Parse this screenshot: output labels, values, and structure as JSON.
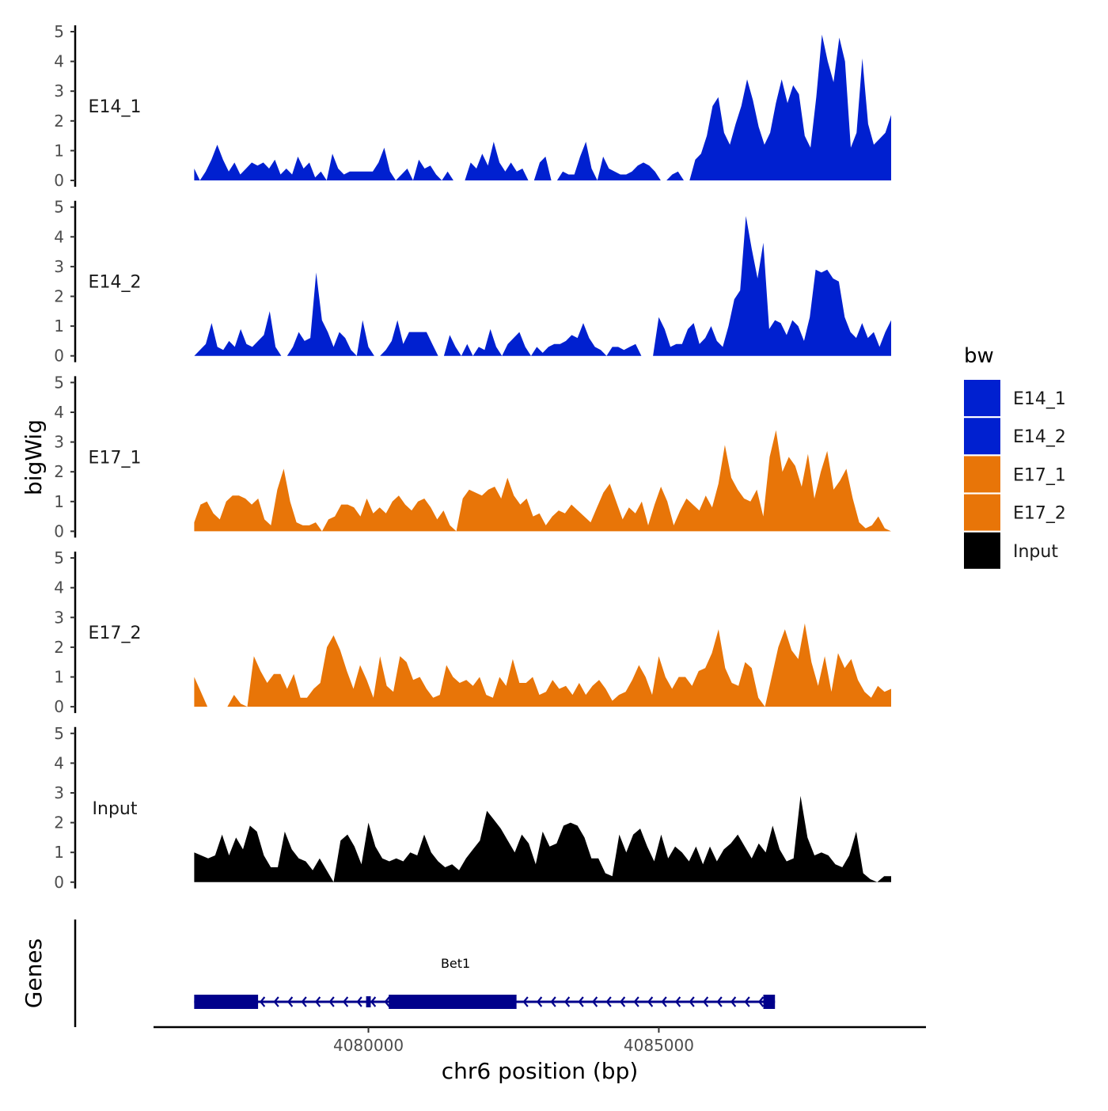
{
  "chart_data": {
    "type": "area",
    "title": "",
    "ylabel": "bigWig",
    "gene_panel_label": "Genes",
    "xlabel": "chr6 position (bp)",
    "xlim": [
      4076300,
      4089600
    ],
    "data_range": [
      4077000,
      4089000
    ],
    "x_ticks": [
      {
        "value": 4080000,
        "label": "4080000"
      },
      {
        "value": 4085000,
        "label": "4085000"
      }
    ],
    "ylim": [
      0,
      5
    ],
    "y_ticks": [
      "0",
      "1",
      "2",
      "3",
      "4",
      "5"
    ],
    "legend": {
      "title": "bw",
      "position": "right",
      "items": [
        {
          "label": "E14_1",
          "color": "#0020D0"
        },
        {
          "label": "E14_2",
          "color": "#0020D0"
        },
        {
          "label": "E17_1",
          "color": "#E87508"
        },
        {
          "label": "E17_2",
          "color": "#E87508"
        },
        {
          "label": "Input",
          "color": "#000000"
        }
      ]
    },
    "series": [
      {
        "name": "E14_1",
        "label": "E14_1",
        "color": "#0020D0",
        "values": [
          0.4,
          0.0,
          0.3,
          0.7,
          1.2,
          0.7,
          0.3,
          0.6,
          0.2,
          0.4,
          0.6,
          0.5,
          0.6,
          0.4,
          0.7,
          0.2,
          0.4,
          0.2,
          0.8,
          0.4,
          0.6,
          0.1,
          0.3,
          0.0,
          0.9,
          0.4,
          0.2,
          0.3,
          0.3,
          0.3,
          0.3,
          0.3,
          0.6,
          1.1,
          0.3,
          0.0,
          0.2,
          0.4,
          0.0,
          0.7,
          0.4,
          0.5,
          0.2,
          0.0,
          0.3,
          0.0,
          0.0,
          0.0,
          0.6,
          0.4,
          0.9,
          0.5,
          1.3,
          0.6,
          0.3,
          0.6,
          0.3,
          0.4,
          0.0,
          0.0,
          0.6,
          0.8,
          0.0,
          0.0,
          0.3,
          0.2,
          0.2,
          0.8,
          1.3,
          0.4,
          0.0,
          0.8,
          0.4,
          0.3,
          0.2,
          0.2,
          0.3,
          0.5,
          0.6,
          0.5,
          0.3,
          0.0,
          0.0,
          0.2,
          0.3,
          0.0,
          0.0,
          0.7,
          0.9,
          1.5,
          2.5,
          2.8,
          1.6,
          1.2,
          1.9,
          2.5,
          3.4,
          2.7,
          1.8,
          1.2,
          1.6,
          2.6,
          3.4,
          2.6,
          3.2,
          2.9,
          1.5,
          1.1,
          2.8,
          4.9,
          4.0,
          3.3,
          4.8,
          4.0,
          1.1,
          1.6,
          4.1,
          1.9,
          1.2,
          1.4,
          1.6,
          2.2
        ],
        "x_start": 4077000,
        "x_end": 4089000
      },
      {
        "name": "E14_2",
        "label": "E14_2",
        "color": "#0020D0",
        "values": [
          0.0,
          0.2,
          0.4,
          1.1,
          0.3,
          0.2,
          0.5,
          0.3,
          0.9,
          0.4,
          0.3,
          0.5,
          0.7,
          1.5,
          0.3,
          0.0,
          0.0,
          0.3,
          0.8,
          0.5,
          0.6,
          2.8,
          1.2,
          0.8,
          0.3,
          0.8,
          0.6,
          0.2,
          0.0,
          1.2,
          0.3,
          0.0,
          0.0,
          0.2,
          0.5,
          1.2,
          0.4,
          0.8,
          0.8,
          0.8,
          0.8,
          0.4,
          0.0,
          0.0,
          0.7,
          0.3,
          0.0,
          0.4,
          0.0,
          0.3,
          0.2,
          0.9,
          0.3,
          0.0,
          0.4,
          0.6,
          0.8,
          0.3,
          0.0,
          0.3,
          0.1,
          0.3,
          0.4,
          0.4,
          0.5,
          0.7,
          0.6,
          1.1,
          0.6,
          0.3,
          0.2,
          0.0,
          0.3,
          0.3,
          0.2,
          0.3,
          0.4,
          0.0,
          0.0,
          0.0,
          1.3,
          0.9,
          0.3,
          0.4,
          0.4,
          0.9,
          1.1,
          0.4,
          0.6,
          1.0,
          0.5,
          0.3,
          1.0,
          1.9,
          2.2,
          4.7,
          3.6,
          2.6,
          3.8,
          0.9,
          1.2,
          1.1,
          0.7,
          1.2,
          1.0,
          0.5,
          1.3,
          2.9,
          2.8,
          2.9,
          2.6,
          2.5,
          1.3,
          0.8,
          0.6,
          1.1,
          0.6,
          0.8,
          0.3,
          0.8,
          1.2
        ],
        "x_start": 4077000,
        "x_end": 4089000
      },
      {
        "name": "E17_1",
        "label": "E17_1",
        "color": "#E87508",
        "values": [
          0.3,
          0.9,
          1.0,
          0.6,
          0.4,
          1.0,
          1.2,
          1.2,
          1.1,
          0.9,
          1.1,
          0.4,
          0.2,
          1.4,
          2.1,
          1.0,
          0.3,
          0.2,
          0.2,
          0.3,
          0.0,
          0.4,
          0.5,
          0.9,
          0.9,
          0.8,
          0.5,
          1.1,
          0.6,
          0.8,
          0.6,
          1.0,
          1.2,
          0.9,
          0.7,
          1.0,
          1.1,
          0.8,
          0.4,
          0.7,
          0.2,
          0.0,
          1.1,
          1.4,
          1.3,
          1.2,
          1.4,
          1.5,
          1.1,
          1.8,
          1.2,
          0.9,
          1.1,
          0.5,
          0.6,
          0.2,
          0.5,
          0.7,
          0.6,
          0.9,
          0.7,
          0.5,
          0.3,
          0.8,
          1.3,
          1.6,
          1.0,
          0.4,
          0.8,
          0.6,
          1.0,
          0.2,
          0.9,
          1.5,
          1.0,
          0.2,
          0.7,
          1.1,
          0.9,
          0.7,
          1.2,
          0.8,
          1.6,
          2.9,
          1.8,
          1.4,
          1.1,
          1.0,
          1.4,
          0.5,
          2.5,
          3.4,
          2.0,
          2.5,
          2.2,
          1.5,
          2.6,
          1.1,
          2.0,
          2.7,
          1.4,
          1.7,
          2.1,
          1.1,
          0.3,
          0.1,
          0.2,
          0.5,
          0.1,
          0.0
        ],
        "x_start": 4077000,
        "x_end": 4089000
      },
      {
        "name": "E17_2",
        "label": "E17_2",
        "color": "#E87508",
        "values": [
          1.0,
          0.5,
          0.0,
          0.0,
          0.0,
          0.0,
          0.4,
          0.1,
          0.0,
          1.7,
          1.2,
          0.8,
          1.1,
          1.1,
          0.6,
          1.1,
          0.3,
          0.3,
          0.6,
          0.8,
          2.0,
          2.4,
          1.9,
          1.2,
          0.6,
          1.4,
          0.9,
          0.3,
          1.7,
          0.7,
          0.5,
          1.7,
          1.5,
          0.9,
          1.0,
          0.6,
          0.3,
          0.4,
          1.4,
          1.0,
          0.8,
          0.9,
          0.7,
          1.0,
          0.4,
          0.3,
          1.0,
          0.7,
          1.6,
          0.8,
          0.8,
          1.0,
          0.4,
          0.5,
          0.9,
          0.6,
          0.7,
          0.4,
          0.8,
          0.4,
          0.7,
          0.9,
          0.6,
          0.2,
          0.4,
          0.5,
          0.9,
          1.4,
          1.0,
          0.4,
          1.7,
          1.0,
          0.6,
          1.0,
          1.0,
          0.7,
          1.2,
          1.3,
          1.8,
          2.6,
          1.3,
          0.8,
          0.7,
          1.5,
          1.3,
          0.3,
          0.0,
          1.0,
          2.0,
          2.6,
          1.9,
          1.6,
          2.8,
          1.5,
          0.7,
          1.7,
          0.5,
          1.8,
          1.3,
          1.6,
          0.9,
          0.5,
          0.3,
          0.7,
          0.5,
          0.6
        ],
        "x_start": 4077000,
        "x_end": 4089000
      },
      {
        "name": "Input",
        "label": "Input",
        "color": "#000000",
        "values": [
          1.0,
          0.9,
          0.8,
          0.9,
          1.6,
          0.9,
          1.5,
          1.1,
          1.9,
          1.7,
          0.9,
          0.5,
          0.5,
          1.7,
          1.1,
          0.8,
          0.7,
          0.4,
          0.8,
          0.4,
          0.0,
          1.4,
          1.6,
          1.2,
          0.6,
          2.0,
          1.2,
          0.8,
          0.7,
          0.8,
          0.7,
          1.0,
          0.9,
          1.6,
          1.0,
          0.7,
          0.5,
          0.6,
          0.4,
          0.8,
          1.1,
          1.4,
          2.4,
          2.1,
          1.8,
          1.4,
          1.0,
          1.6,
          1.3,
          0.6,
          1.7,
          1.2,
          1.3,
          1.9,
          2.0,
          1.9,
          1.5,
          0.8,
          0.8,
          0.3,
          0.2,
          1.6,
          1.0,
          1.6,
          1.8,
          1.2,
          0.7,
          1.6,
          0.8,
          1.2,
          1.0,
          0.7,
          1.2,
          0.6,
          1.2,
          0.7,
          1.1,
          1.3,
          1.6,
          1.2,
          0.8,
          1.3,
          1.0,
          1.9,
          1.1,
          0.7,
          0.8,
          2.9,
          1.5,
          0.9,
          1.0,
          0.9,
          0.6,
          0.5,
          0.9,
          1.7,
          0.3,
          0.1,
          0.0,
          0.2,
          0.2
        ],
        "x_start": 4077000,
        "x_end": 4089000
      }
    ],
    "genes": [
      {
        "name": "Bet1",
        "strand": "-",
        "color": "#00008B",
        "start": 4077000,
        "end": 4087000,
        "exons": [
          [
            4077000,
            4078100
          ],
          [
            4079960,
            4080040
          ],
          [
            4080350,
            4082550
          ],
          [
            4086800,
            4087000
          ]
        ]
      }
    ]
  }
}
